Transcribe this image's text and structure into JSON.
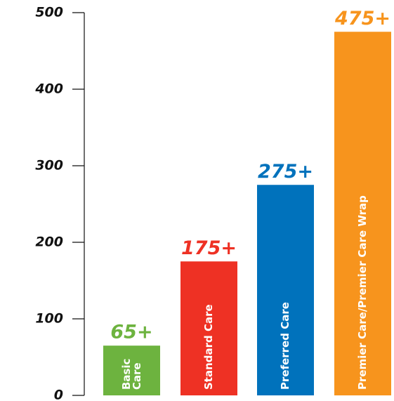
{
  "chart_data": {
    "type": "bar",
    "categories": [
      "Basic Care",
      "Standard Care",
      "Preferred Care",
      "Premier Care/Premier Care Wrap"
    ],
    "values": [
      65,
      175,
      275,
      475
    ],
    "value_labels": [
      "65+",
      "175+",
      "275+",
      "475+"
    ],
    "colors": [
      "#6db33f",
      "#ee3124",
      "#0072bc",
      "#f7941d"
    ],
    "ylim": [
      0,
      500
    ],
    "yticks": [
      0,
      100,
      200,
      300,
      400,
      500
    ]
  }
}
